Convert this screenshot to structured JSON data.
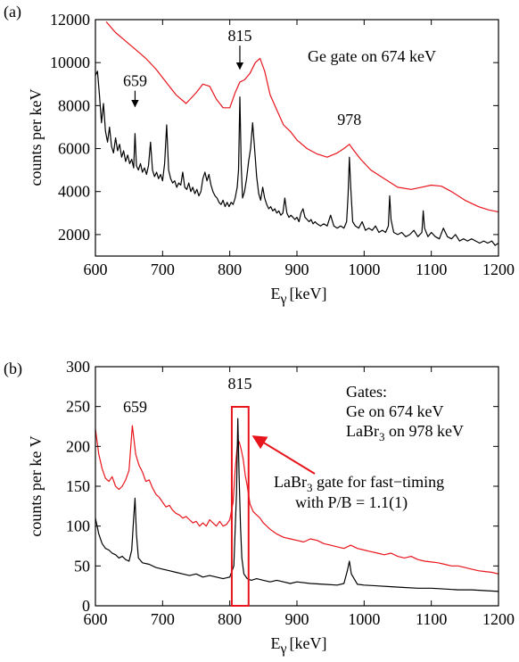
{
  "chart_data": [
    {
      "panel": "(a)",
      "type": "line",
      "xlabel": "E",
      "xlabel_sub": "γ",
      "xlabel_unit": "[keV]",
      "ylabel": "counts per keV",
      "xlim": [
        600,
        1200
      ],
      "ylim": [
        1000,
        12000
      ],
      "xticks": [
        600,
        700,
        800,
        900,
        1000,
        1100,
        1200
      ],
      "yticks": [
        2000,
        4000,
        6000,
        8000,
        10000,
        12000
      ],
      "annotations": [
        {
          "text": "659",
          "x": 659,
          "y": 8900,
          "arrow_to": 7950
        },
        {
          "text": "815",
          "x": 815,
          "y": 11000,
          "arrow_to": 9700
        },
        {
          "text": "978",
          "x": 978,
          "y": 7100
        }
      ],
      "legend_text": "Ge gate on 674 keV",
      "series": [
        {
          "color": "#e8141c",
          "x": [
            616,
            630,
            645,
            660,
            675,
            690,
            705,
            720,
            735,
            750,
            760,
            770,
            780,
            790,
            800,
            808,
            815,
            822,
            830,
            838,
            845,
            852,
            860,
            870,
            880,
            890,
            900,
            915,
            930,
            945,
            960,
            970,
            978,
            985,
            995,
            1010,
            1030,
            1050,
            1070,
            1085,
            1100,
            1115,
            1130,
            1150,
            1170,
            1185,
            1200
          ],
          "y": [
            11900,
            11400,
            11000,
            10600,
            10200,
            9700,
            9100,
            8500,
            8100,
            8600,
            9000,
            8900,
            8300,
            7900,
            7900,
            8600,
            9100,
            9200,
            9500,
            10000,
            10200,
            9600,
            8500,
            7800,
            7100,
            6800,
            6400,
            6000,
            5750,
            5600,
            5800,
            6000,
            6200,
            5900,
            5500,
            5000,
            4600,
            4200,
            4100,
            4200,
            4300,
            4250,
            4000,
            3600,
            3300,
            3150,
            3050
          ]
        },
        {
          "color": "#000000",
          "x": [
            600,
            603,
            606,
            609,
            612,
            615,
            618,
            621,
            624,
            627,
            630,
            633,
            636,
            639,
            642,
            645,
            648,
            651,
            654,
            657,
            659,
            661,
            664,
            667,
            670,
            673,
            676,
            679,
            682,
            685,
            688,
            691,
            694,
            697,
            700,
            703,
            706,
            709,
            712,
            715,
            718,
            721,
            724,
            727,
            730,
            733,
            736,
            739,
            742,
            745,
            748,
            751,
            754,
            757,
            760,
            763,
            766,
            769,
            772,
            775,
            778,
            781,
            784,
            787,
            790,
            793,
            796,
            799,
            802,
            805,
            808,
            811,
            813,
            815,
            817,
            819,
            822,
            825,
            828,
            831,
            834,
            837,
            840,
            843,
            846,
            849,
            852,
            855,
            858,
            861,
            864,
            867,
            870,
            873,
            876,
            879,
            882,
            885,
            888,
            891,
            894,
            897,
            900,
            903,
            906,
            909,
            912,
            915,
            918,
            921,
            924,
            927,
            930,
            935,
            940,
            945,
            950,
            955,
            960,
            965,
            970,
            974,
            976,
            978,
            980,
            983,
            987,
            992,
            997,
            1002,
            1007,
            1012,
            1017,
            1022,
            1027,
            1032,
            1036,
            1038,
            1040,
            1044,
            1050,
            1056,
            1062,
            1068,
            1074,
            1080,
            1086,
            1088,
            1090,
            1095,
            1100,
            1106,
            1112,
            1118,
            1124,
            1130,
            1136,
            1142,
            1148,
            1154,
            1160,
            1166,
            1172,
            1178,
            1184,
            1190,
            1195,
            1200
          ],
          "y": [
            9400,
            9600,
            8500,
            7200,
            8100,
            6800,
            6300,
            7000,
            6100,
            5800,
            6500,
            5900,
            6200,
            5600,
            5900,
            5400,
            5700,
            5300,
            5500,
            5100,
            6700,
            5200,
            5000,
            5300,
            4900,
            5100,
            4800,
            5200,
            6300,
            5000,
            4700,
            4900,
            4600,
            4800,
            4500,
            5300,
            7100,
            5000,
            4600,
            4400,
            4500,
            4200,
            4400,
            4300,
            4900,
            4200,
            4100,
            4400,
            4000,
            4200,
            3900,
            4100,
            3800,
            4000,
            4600,
            4900,
            4500,
            4800,
            4300,
            4000,
            3800,
            3700,
            3500,
            3400,
            3600,
            3300,
            3500,
            3300,
            3500,
            3400,
            3700,
            4200,
            5000,
            8400,
            5200,
            3700,
            4000,
            4600,
            5400,
            6000,
            7200,
            6000,
            4700,
            3900,
            3600,
            4200,
            3700,
            3400,
            3200,
            3300,
            3100,
            3200,
            3000,
            3100,
            2900,
            3000,
            3700,
            3000,
            2800,
            2900,
            2800,
            2700,
            2800,
            2600,
            3000,
            3200,
            2800,
            2700,
            2600,
            2700,
            2500,
            2600,
            2500,
            2400,
            2500,
            2400,
            2900,
            2400,
            2300,
            2400,
            2300,
            2600,
            3800,
            5600,
            4200,
            2600,
            2400,
            2300,
            2600,
            2200,
            2300,
            2200,
            2400,
            2100,
            2200,
            2100,
            2400,
            3800,
            2700,
            2100,
            2000,
            2100,
            1900,
            2000,
            2200,
            1900,
            2100,
            3100,
            2300,
            1900,
            2100,
            1900,
            1800,
            2300,
            1900,
            1800,
            2000,
            1700,
            1800,
            1700,
            1800,
            1700,
            1600,
            1700,
            1600,
            1700,
            1500,
            1600
          ]
        }
      ]
    },
    {
      "panel": "(b)",
      "type": "line",
      "xlabel": "E",
      "xlabel_sub": "γ",
      "xlabel_unit": "[keV]",
      "ylabel": "counts per ke V",
      "xlim": [
        600,
        1200
      ],
      "ylim": [
        0,
        300
      ],
      "xticks": [
        600,
        700,
        800,
        900,
        1000,
        1100,
        1200
      ],
      "yticks": [
        0,
        50,
        100,
        150,
        200,
        250,
        300
      ],
      "annotations": [
        {
          "text": "659",
          "x": 659,
          "y": 243
        },
        {
          "text": "815",
          "x": 815,
          "y": 272
        }
      ],
      "gates_text": [
        "Gates:",
        "Ge on 674 keV",
        "LaBr",
        "3",
        " on 978 keV"
      ],
      "gate_label": [
        "LaBr",
        "3",
        " gate for fast−timing",
        "with P/B = 1.1(1)"
      ],
      "gate_box": [
        803,
        828
      ],
      "series": [
        {
          "color": "#e8141c",
          "x": [
            600,
            605,
            610,
            615,
            620,
            625,
            630,
            635,
            640,
            645,
            650,
            655,
            660,
            665,
            670,
            675,
            680,
            685,
            690,
            695,
            700,
            705,
            710,
            715,
            720,
            725,
            730,
            735,
            740,
            745,
            750,
            755,
            760,
            765,
            770,
            775,
            780,
            785,
            790,
            795,
            800,
            805,
            808,
            811,
            814,
            817,
            820,
            823,
            826,
            830,
            835,
            840,
            845,
            850,
            860,
            870,
            880,
            890,
            900,
            910,
            920,
            930,
            940,
            950,
            960,
            970,
            980,
            990,
            1000,
            1010,
            1020,
            1030,
            1040,
            1050,
            1060,
            1070,
            1080,
            1090,
            1100,
            1110,
            1120,
            1130,
            1140,
            1150,
            1160,
            1170,
            1180,
            1190,
            1200
          ],
          "y": [
            222,
            190,
            172,
            160,
            156,
            162,
            150,
            146,
            150,
            158,
            170,
            226,
            190,
            176,
            168,
            156,
            158,
            148,
            140,
            136,
            130,
            124,
            126,
            120,
            116,
            114,
            110,
            112,
            108,
            104,
            106,
            100,
            104,
            100,
            108,
            104,
            100,
            106,
            100,
            102,
            108,
            130,
            170,
            200,
            206,
            196,
            184,
            164,
            150,
            128,
            118,
            114,
            110,
            104,
            96,
            90,
            86,
            84,
            82,
            80,
            84,
            82,
            78,
            76,
            74,
            72,
            76,
            72,
            70,
            68,
            66,
            64,
            66,
            62,
            60,
            62,
            58,
            56,
            55,
            54,
            52,
            50,
            50,
            48,
            46,
            44,
            43,
            42,
            40
          ]
        },
        {
          "color": "#000000",
          "x": [
            600,
            605,
            610,
            615,
            620,
            625,
            630,
            635,
            640,
            645,
            650,
            654,
            657,
            659,
            661,
            664,
            670,
            680,
            690,
            700,
            710,
            720,
            730,
            740,
            750,
            760,
            770,
            780,
            790,
            800,
            806,
            810,
            812,
            814,
            816,
            818,
            821,
            826,
            832,
            840,
            850,
            860,
            870,
            880,
            890,
            900,
            920,
            940,
            960,
            970,
            975,
            978,
            981,
            990,
            1000,
            1020,
            1040,
            1060,
            1080,
            1100,
            1120,
            1140,
            1160,
            1180,
            1200
          ],
          "y": [
            110,
            90,
            78,
            72,
            70,
            66,
            64,
            60,
            62,
            58,
            56,
            70,
            110,
            135,
            90,
            60,
            54,
            52,
            48,
            46,
            44,
            42,
            40,
            38,
            40,
            36,
            38,
            36,
            34,
            36,
            50,
            140,
            235,
            160,
            100,
            60,
            40,
            34,
            32,
            34,
            32,
            30,
            32,
            30,
            28,
            30,
            28,
            27,
            26,
            28,
            44,
            56,
            40,
            27,
            26,
            25,
            24,
            23,
            22,
            22,
            21,
            20,
            20,
            19,
            18
          ]
        }
      ]
    }
  ]
}
